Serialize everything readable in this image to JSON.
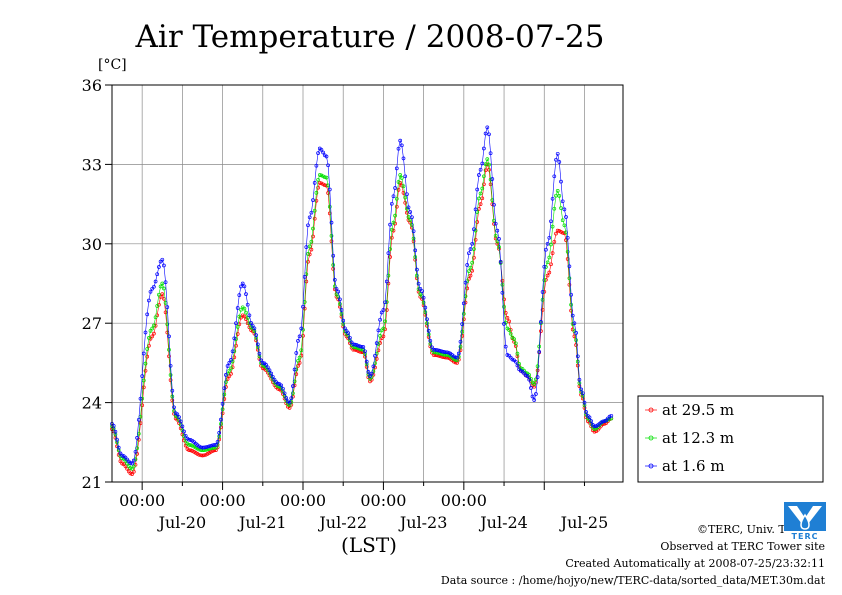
{
  "chart_data": {
    "type": "line",
    "title": "Air Temperature / 2008-07-25",
    "ylabel": "[°C]",
    "xlabel": "(LST)",
    "ylim": [
      21,
      36
    ],
    "xlim_days": [
      "2008-07-19 15:00",
      "2008-07-25 23:30"
    ],
    "y_ticks": [
      21,
      24,
      27,
      30,
      33,
      36
    ],
    "x_ticks_midnight": [
      "00:00",
      "00:00",
      "00:00",
      "00:00",
      "00:00"
    ],
    "x_day_labels": [
      "Jul-20",
      "Jul-21",
      "Jul-22",
      "Jul-23",
      "Jul-24",
      "Jul-25"
    ],
    "grid": true,
    "legend_position": "right",
    "series": [
      {
        "name": "at 29.5 m",
        "color": "#ff0000",
        "keyframes": [
          [
            "2008-07-19 15:00",
            23.0
          ],
          [
            "2008-07-19 18:00",
            21.7
          ],
          [
            "2008-07-19 21:00",
            21.3
          ],
          [
            "2008-07-20 03:00",
            26.5
          ],
          [
            "2008-07-20 06:00",
            28.1
          ],
          [
            "2008-07-20 10:00",
            23.4
          ],
          [
            "2008-07-20 14:00",
            22.2
          ],
          [
            "2008-07-20 18:00",
            22.0
          ],
          [
            "2008-07-20 22:00",
            22.2
          ],
          [
            "2008-07-21 02:00",
            25.0
          ],
          [
            "2008-07-21 06:00",
            27.3
          ],
          [
            "2008-07-21 09:00",
            26.7
          ],
          [
            "2008-07-21 12:00",
            25.3
          ],
          [
            "2008-07-21 17:00",
            24.5
          ],
          [
            "2008-07-21 20:00",
            23.8
          ],
          [
            "2008-07-21 23:00",
            25.5
          ],
          [
            "2008-07-22 02:00",
            29.6
          ],
          [
            "2008-07-22 05:00",
            32.3
          ],
          [
            "2008-07-22 07:00",
            32.2
          ],
          [
            "2008-07-22 10:00",
            28.0
          ],
          [
            "2008-07-22 13:00",
            26.5
          ],
          [
            "2008-07-22 15:00",
            26.0
          ],
          [
            "2008-07-22 18:00",
            25.9
          ],
          [
            "2008-07-22 20:00",
            24.8
          ],
          [
            "2008-07-23 00:00",
            26.5
          ],
          [
            "2008-07-23 03:00",
            30.5
          ],
          [
            "2008-07-23 05:00",
            32.3
          ],
          [
            "2008-07-23 08:00",
            30.8
          ],
          [
            "2008-07-23 11:00",
            28.0
          ],
          [
            "2008-07-23 15:00",
            25.8
          ],
          [
            "2008-07-23 19:00",
            25.7
          ],
          [
            "2008-07-23 22:00",
            25.5
          ],
          [
            "2008-07-24 02:00",
            28.8
          ],
          [
            "2008-07-24 05:00",
            31.5
          ],
          [
            "2008-07-24 07:00",
            33.0
          ],
          [
            "2008-07-24 10:00",
            30.0
          ],
          [
            "2008-07-24 13:00",
            27.2
          ],
          [
            "2008-07-24 15:00",
            26.3
          ],
          [
            "2008-07-24 17:00",
            25.2
          ],
          [
            "2008-07-24 19:00",
            25.0
          ],
          [
            "2008-07-24 21:00",
            24.6
          ],
          [
            "2008-07-25 01:00",
            28.8
          ],
          [
            "2008-07-25 04:00",
            30.5
          ],
          [
            "2008-07-25 06:00",
            30.4
          ],
          [
            "2008-07-25 09:00",
            26.5
          ],
          [
            "2008-07-25 11:00",
            24.3
          ],
          [
            "2008-07-25 13:00",
            23.3
          ],
          [
            "2008-07-25 15:00",
            22.9
          ],
          [
            "2008-07-25 18:00",
            23.2
          ],
          [
            "2008-07-25 20:00",
            23.4
          ]
        ]
      },
      {
        "name": "at 12.3 m",
        "color": "#00e000",
        "keyframes": [
          [
            "2008-07-19 15:00",
            23.1
          ],
          [
            "2008-07-19 18:00",
            21.9
          ],
          [
            "2008-07-19 21:00",
            21.5
          ],
          [
            "2008-07-20 03:00",
            26.8
          ],
          [
            "2008-07-20 06:00",
            28.5
          ],
          [
            "2008-07-20 10:00",
            23.5
          ],
          [
            "2008-07-20 14:00",
            22.4
          ],
          [
            "2008-07-20 18:00",
            22.2
          ],
          [
            "2008-07-20 22:00",
            22.3
          ],
          [
            "2008-07-21 02:00",
            25.2
          ],
          [
            "2008-07-21 06:00",
            27.6
          ],
          [
            "2008-07-21 09:00",
            26.8
          ],
          [
            "2008-07-21 12:00",
            25.4
          ],
          [
            "2008-07-21 17:00",
            24.6
          ],
          [
            "2008-07-21 20:00",
            23.9
          ],
          [
            "2008-07-21 23:00",
            25.7
          ],
          [
            "2008-07-22 02:00",
            29.9
          ],
          [
            "2008-07-22 05:00",
            32.6
          ],
          [
            "2008-07-22 07:00",
            32.5
          ],
          [
            "2008-07-22 10:00",
            28.1
          ],
          [
            "2008-07-22 13:00",
            26.6
          ],
          [
            "2008-07-22 15:00",
            26.1
          ],
          [
            "2008-07-22 18:00",
            26.0
          ],
          [
            "2008-07-22 20:00",
            24.9
          ],
          [
            "2008-07-23 00:00",
            26.8
          ],
          [
            "2008-07-23 03:00",
            30.8
          ],
          [
            "2008-07-23 05:00",
            32.6
          ],
          [
            "2008-07-23 08:00",
            30.9
          ],
          [
            "2008-07-23 11:00",
            28.1
          ],
          [
            "2008-07-23 15:00",
            25.9
          ],
          [
            "2008-07-23 19:00",
            25.8
          ],
          [
            "2008-07-23 22:00",
            25.6
          ],
          [
            "2008-07-24 02:00",
            29.1
          ],
          [
            "2008-07-24 05:00",
            31.9
          ],
          [
            "2008-07-24 07:00",
            33.2
          ],
          [
            "2008-07-24 10:00",
            30.1
          ],
          [
            "2008-07-24 13:00",
            26.8
          ],
          [
            "2008-07-24 15:00",
            26.4
          ],
          [
            "2008-07-24 17:00",
            25.3
          ],
          [
            "2008-07-24 19:00",
            25.1
          ],
          [
            "2008-07-24 21:00",
            24.7
          ],
          [
            "2008-07-25 01:00",
            29.3
          ],
          [
            "2008-07-25 04:00",
            32.0
          ],
          [
            "2008-07-25 06:00",
            30.7
          ],
          [
            "2008-07-25 09:00",
            26.7
          ],
          [
            "2008-07-25 11:00",
            24.4
          ],
          [
            "2008-07-25 13:00",
            23.4
          ],
          [
            "2008-07-25 15:00",
            23.0
          ],
          [
            "2008-07-25 18:00",
            23.3
          ],
          [
            "2008-07-25 20:00",
            23.4
          ]
        ]
      },
      {
        "name": "at 1.6 m",
        "color": "#0000ff",
        "keyframes": [
          [
            "2008-07-19 15:00",
            23.2
          ],
          [
            "2008-07-19 18:00",
            22.0
          ],
          [
            "2008-07-19 21:00",
            21.7
          ],
          [
            "2008-07-20 03:00",
            28.3
          ],
          [
            "2008-07-20 06:00",
            29.4
          ],
          [
            "2008-07-20 10:00",
            23.6
          ],
          [
            "2008-07-20 14:00",
            22.6
          ],
          [
            "2008-07-20 18:00",
            22.3
          ],
          [
            "2008-07-20 22:00",
            22.4
          ],
          [
            "2008-07-21 02:00",
            25.5
          ],
          [
            "2008-07-21 06:00",
            28.5
          ],
          [
            "2008-07-21 09:00",
            26.9
          ],
          [
            "2008-07-21 12:00",
            25.5
          ],
          [
            "2008-07-21 17:00",
            24.7
          ],
          [
            "2008-07-21 20:00",
            24.0
          ],
          [
            "2008-07-21 23:00",
            26.5
          ],
          [
            "2008-07-22 02:00",
            31.0
          ],
          [
            "2008-07-22 05:00",
            33.6
          ],
          [
            "2008-07-22 07:00",
            33.3
          ],
          [
            "2008-07-22 10:00",
            28.3
          ],
          [
            "2008-07-22 13:00",
            26.7
          ],
          [
            "2008-07-22 15:00",
            26.2
          ],
          [
            "2008-07-22 18:00",
            26.1
          ],
          [
            "2008-07-22 20:00",
            25.0
          ],
          [
            "2008-07-23 00:00",
            27.5
          ],
          [
            "2008-07-23 03:00",
            31.8
          ],
          [
            "2008-07-23 05:00",
            33.9
          ],
          [
            "2008-07-23 08:00",
            31.2
          ],
          [
            "2008-07-23 11:00",
            28.3
          ],
          [
            "2008-07-23 15:00",
            26.0
          ],
          [
            "2008-07-23 19:00",
            25.9
          ],
          [
            "2008-07-23 22:00",
            25.7
          ],
          [
            "2008-07-24 02:00",
            29.8
          ],
          [
            "2008-07-24 05:00",
            32.8
          ],
          [
            "2008-07-24 07:00",
            34.4
          ],
          [
            "2008-07-24 10:00",
            30.5
          ],
          [
            "2008-07-24 13:00",
            25.8
          ],
          [
            "2008-07-24 15:00",
            25.6
          ],
          [
            "2008-07-24 17:00",
            25.2
          ],
          [
            "2008-07-24 19:00",
            25.0
          ],
          [
            "2008-07-24 21:00",
            24.1
          ],
          [
            "2008-07-25 01:00",
            30.0
          ],
          [
            "2008-07-25 04:00",
            33.4
          ],
          [
            "2008-07-25 06:00",
            31.3
          ],
          [
            "2008-07-25 09:00",
            27.0
          ],
          [
            "2008-07-25 11:00",
            24.5
          ],
          [
            "2008-07-25 13:00",
            23.5
          ],
          [
            "2008-07-25 15:00",
            23.1
          ],
          [
            "2008-07-25 18:00",
            23.3
          ],
          [
            "2008-07-25 20:00",
            23.5
          ]
        ]
      }
    ]
  },
  "credits": {
    "copyright": "©TERC, Univ. Tsukuba",
    "site": "Observed at TERC Tower site",
    "created": "Created Automatically at 2008-07-25/23:32:11",
    "source": "Data source : /home/hojyo/new/TERC-data/sorted_data/MET.30m.dat"
  },
  "logo": {
    "text": "TERC",
    "color": "#1f7fd4",
    "icon": "terc-logo-icon"
  }
}
